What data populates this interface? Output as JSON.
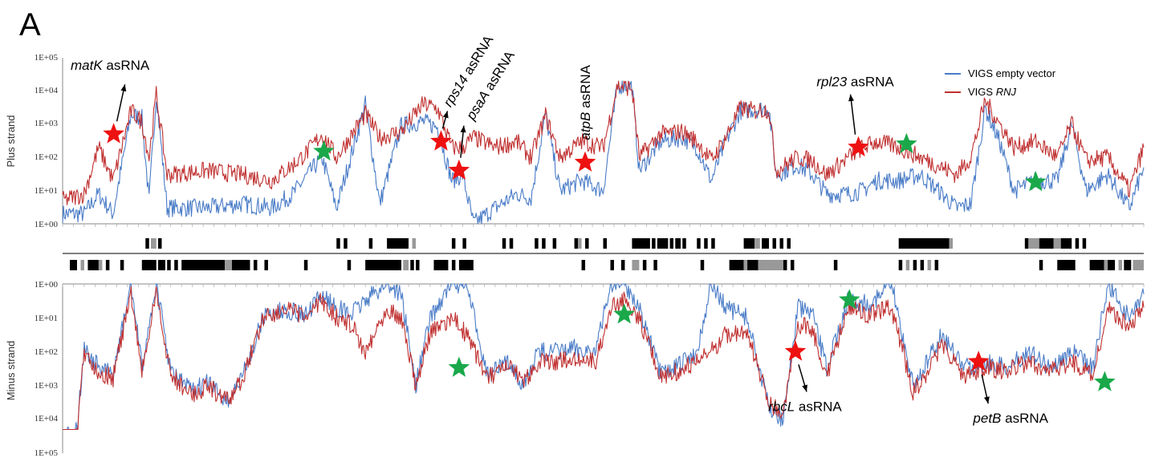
{
  "panel_letter": "A",
  "chart_data": {
    "type": "line",
    "x_bins": 300,
    "legend": {
      "placement": "top-right",
      "items": [
        {
          "name": "VIGS empty vector",
          "color": "#4a7cc7"
        },
        {
          "name_html": "VIGS <i>RNJ</i>",
          "name": "VIGS RNJ",
          "color": "#c03030"
        }
      ]
    },
    "plus_strand": {
      "ylabel": "Plus strand",
      "scale": "log",
      "ylim": [
        1,
        100000
      ],
      "tick_labels": [
        "1E+00",
        "1E+01",
        "1E+02",
        "1E+03",
        "1E+04",
        "1E+05"
      ],
      "control_profile": [
        {
          "x": 0,
          "v": 2
        },
        {
          "x": 6,
          "v": 2
        },
        {
          "x": 10,
          "v": 8
        },
        {
          "x": 14,
          "v": 2
        },
        {
          "x": 19,
          "v": 2000
        },
        {
          "x": 22,
          "v": 1500
        },
        {
          "x": 24,
          "v": 5
        },
        {
          "x": 26,
          "v": 8000
        },
        {
          "x": 29,
          "v": 3
        },
        {
          "x": 40,
          "v": 3
        },
        {
          "x": 50,
          "v": 4
        },
        {
          "x": 58,
          "v": 3
        },
        {
          "x": 64,
          "v": 8
        },
        {
          "x": 68,
          "v": 30
        },
        {
          "x": 72,
          "v": 100
        },
        {
          "x": 76,
          "v": 3
        },
        {
          "x": 84,
          "v": 4000
        },
        {
          "x": 88,
          "v": 4
        },
        {
          "x": 94,
          "v": 900
        },
        {
          "x": 100,
          "v": 1200
        },
        {
          "x": 104,
          "v": 800
        },
        {
          "x": 108,
          "v": 20
        },
        {
          "x": 111,
          "v": 30
        },
        {
          "x": 114,
          "v": 1
        },
        {
          "x": 120,
          "v": 3
        },
        {
          "x": 126,
          "v": 8
        },
        {
          "x": 130,
          "v": 6
        },
        {
          "x": 134,
          "v": 2000
        },
        {
          "x": 138,
          "v": 10
        },
        {
          "x": 144,
          "v": 20
        },
        {
          "x": 150,
          "v": 10
        },
        {
          "x": 154,
          "v": 15000
        },
        {
          "x": 158,
          "v": 14000
        },
        {
          "x": 160,
          "v": 40
        },
        {
          "x": 166,
          "v": 300
        },
        {
          "x": 172,
          "v": 400
        },
        {
          "x": 176,
          "v": 200
        },
        {
          "x": 180,
          "v": 20
        },
        {
          "x": 184,
          "v": 300
        },
        {
          "x": 188,
          "v": 2500
        },
        {
          "x": 192,
          "v": 2800
        },
        {
          "x": 196,
          "v": 3000
        },
        {
          "x": 198,
          "v": 30
        },
        {
          "x": 204,
          "v": 60
        },
        {
          "x": 208,
          "v": 30
        },
        {
          "x": 212,
          "v": 8
        },
        {
          "x": 218,
          "v": 8
        },
        {
          "x": 222,
          "v": 10
        },
        {
          "x": 226,
          "v": 20
        },
        {
          "x": 232,
          "v": 20
        },
        {
          "x": 238,
          "v": 30
        },
        {
          "x": 244,
          "v": 8
        },
        {
          "x": 248,
          "v": 3
        },
        {
          "x": 252,
          "v": 4
        },
        {
          "x": 256,
          "v": 3000
        },
        {
          "x": 260,
          "v": 300
        },
        {
          "x": 264,
          "v": 10
        },
        {
          "x": 270,
          "v": 20
        },
        {
          "x": 276,
          "v": 20
        },
        {
          "x": 280,
          "v": 1000
        },
        {
          "x": 284,
          "v": 10
        },
        {
          "x": 290,
          "v": 30
        },
        {
          "x": 296,
          "v": 3
        },
        {
          "x": 300,
          "v": 50
        }
      ],
      "rnj_profile": [
        {
          "x": 0,
          "v": 5
        },
        {
          "x": 6,
          "v": 8
        },
        {
          "x": 10,
          "v": 200
        },
        {
          "x": 14,
          "v": 20
        },
        {
          "x": 19,
          "v": 2500
        },
        {
          "x": 22,
          "v": 1200
        },
        {
          "x": 24,
          "v": 100
        },
        {
          "x": 26,
          "v": 8000
        },
        {
          "x": 29,
          "v": 30
        },
        {
          "x": 40,
          "v": 40
        },
        {
          "x": 50,
          "v": 30
        },
        {
          "x": 58,
          "v": 20
        },
        {
          "x": 64,
          "v": 60
        },
        {
          "x": 68,
          "v": 150
        },
        {
          "x": 72,
          "v": 500
        },
        {
          "x": 76,
          "v": 100
        },
        {
          "x": 84,
          "v": 2000
        },
        {
          "x": 88,
          "v": 400
        },
        {
          "x": 94,
          "v": 600
        },
        {
          "x": 100,
          "v": 4000
        },
        {
          "x": 104,
          "v": 3000
        },
        {
          "x": 108,
          "v": 200
        },
        {
          "x": 111,
          "v": 200
        },
        {
          "x": 114,
          "v": 400
        },
        {
          "x": 120,
          "v": 200
        },
        {
          "x": 126,
          "v": 300
        },
        {
          "x": 130,
          "v": 100
        },
        {
          "x": 134,
          "v": 1800
        },
        {
          "x": 138,
          "v": 100
        },
        {
          "x": 144,
          "v": 300
        },
        {
          "x": 150,
          "v": 200
        },
        {
          "x": 154,
          "v": 15000
        },
        {
          "x": 158,
          "v": 12000
        },
        {
          "x": 160,
          "v": 100
        },
        {
          "x": 166,
          "v": 500
        },
        {
          "x": 172,
          "v": 600
        },
        {
          "x": 176,
          "v": 300
        },
        {
          "x": 180,
          "v": 80
        },
        {
          "x": 184,
          "v": 400
        },
        {
          "x": 188,
          "v": 3000
        },
        {
          "x": 192,
          "v": 2500
        },
        {
          "x": 196,
          "v": 2800
        },
        {
          "x": 198,
          "v": 40
        },
        {
          "x": 204,
          "v": 100
        },
        {
          "x": 208,
          "v": 80
        },
        {
          "x": 212,
          "v": 30
        },
        {
          "x": 218,
          "v": 100
        },
        {
          "x": 222,
          "v": 200
        },
        {
          "x": 226,
          "v": 300
        },
        {
          "x": 232,
          "v": 200
        },
        {
          "x": 238,
          "v": 100
        },
        {
          "x": 244,
          "v": 50
        },
        {
          "x": 248,
          "v": 30
        },
        {
          "x": 252,
          "v": 100
        },
        {
          "x": 256,
          "v": 5000
        },
        {
          "x": 260,
          "v": 1000
        },
        {
          "x": 264,
          "v": 200
        },
        {
          "x": 270,
          "v": 300
        },
        {
          "x": 276,
          "v": 100
        },
        {
          "x": 280,
          "v": 1000
        },
        {
          "x": 284,
          "v": 80
        },
        {
          "x": 290,
          "v": 100
        },
        {
          "x": 296,
          "v": 10
        },
        {
          "x": 300,
          "v": 200
        }
      ],
      "annotations": [
        {
          "star": "red",
          "x": 17,
          "y": 500,
          "label_html": "<i>matK</i> asRNA",
          "label": "matK asRNA"
        },
        {
          "star": "red",
          "x": 126,
          "y": 300,
          "label_html": "<i>rps14</i> asRNA",
          "label": "rps14 asRNA",
          "rotate": -58
        },
        {
          "star": "red",
          "x": 132,
          "y": 40,
          "label_html": "<i>psaA</i>  asRNA",
          "label": "psaA  asRNA",
          "rotate": -58
        },
        {
          "star": "red",
          "x": 174,
          "y": 70,
          "label_html": "<i>atpB</i>  asRNA",
          "label": "atpB  asRNA",
          "rotate": -90
        },
        {
          "star": "red",
          "x": 265,
          "y": 200,
          "label_html": "<i>rpl23</i> asRNA",
          "label": "rpl23 asRNA"
        },
        {
          "star": "green",
          "x": 87,
          "y": 150
        },
        {
          "star": "green",
          "x": 281,
          "y": 250
        },
        {
          "star": "green",
          "x": 324,
          "y": 18
        }
      ]
    },
    "minus_strand": {
      "ylabel": "Minus strand",
      "scale": "log",
      "inverted": true,
      "ylim": [
        1,
        100000
      ],
      "tick_labels": [
        "1E+00",
        "1E+01",
        "1E+02",
        "1E+03",
        "1E+04",
        "1E+05"
      ],
      "control_profile": [
        {
          "x": 0,
          "v": 30000
        },
        {
          "x": 4,
          "v": 20000
        },
        {
          "x": 6,
          "v": 80
        },
        {
          "x": 10,
          "v": 300
        },
        {
          "x": 14,
          "v": 500
        },
        {
          "x": 19,
          "v": 1
        },
        {
          "x": 22,
          "v": 300
        },
        {
          "x": 26,
          "v": 1
        },
        {
          "x": 30,
          "v": 400
        },
        {
          "x": 36,
          "v": 1500
        },
        {
          "x": 40,
          "v": 800
        },
        {
          "x": 46,
          "v": 3000
        },
        {
          "x": 50,
          "v": 500
        },
        {
          "x": 56,
          "v": 8
        },
        {
          "x": 62,
          "v": 6
        },
        {
          "x": 68,
          "v": 8
        },
        {
          "x": 72,
          "v": 2
        },
        {
          "x": 76,
          "v": 5
        },
        {
          "x": 80,
          "v": 8
        },
        {
          "x": 84,
          "v": 3
        },
        {
          "x": 90,
          "v": 1
        },
        {
          "x": 94,
          "v": 2
        },
        {
          "x": 98,
          "v": 1000
        },
        {
          "x": 102,
          "v": 10
        },
        {
          "x": 108,
          "v": 1
        },
        {
          "x": 112,
          "v": 1
        },
        {
          "x": 118,
          "v": 500
        },
        {
          "x": 124,
          "v": 200
        },
        {
          "x": 128,
          "v": 1000
        },
        {
          "x": 132,
          "v": 100
        },
        {
          "x": 138,
          "v": 100
        },
        {
          "x": 142,
          "v": 80
        },
        {
          "x": 148,
          "v": 100
        },
        {
          "x": 152,
          "v": 1
        },
        {
          "x": 156,
          "v": 1
        },
        {
          "x": 160,
          "v": 5
        },
        {
          "x": 166,
          "v": 500
        },
        {
          "x": 170,
          "v": 300
        },
        {
          "x": 176,
          "v": 100
        },
        {
          "x": 180,
          "v": 1
        },
        {
          "x": 184,
          "v": 5
        },
        {
          "x": 190,
          "v": 10
        },
        {
          "x": 196,
          "v": 5000
        },
        {
          "x": 200,
          "v": 10000
        },
        {
          "x": 204,
          "v": 5
        },
        {
          "x": 208,
          "v": 8
        },
        {
          "x": 212,
          "v": 300
        },
        {
          "x": 218,
          "v": 3
        },
        {
          "x": 224,
          "v": 4
        },
        {
          "x": 230,
          "v": 1
        },
        {
          "x": 236,
          "v": 1000
        },
        {
          "x": 240,
          "v": 200
        },
        {
          "x": 244,
          "v": 30
        },
        {
          "x": 250,
          "v": 300
        },
        {
          "x": 256,
          "v": 200
        },
        {
          "x": 262,
          "v": 300
        },
        {
          "x": 268,
          "v": 100
        },
        {
          "x": 274,
          "v": 300
        },
        {
          "x": 280,
          "v": 100
        },
        {
          "x": 286,
          "v": 300
        },
        {
          "x": 290,
          "v": 1
        },
        {
          "x": 296,
          "v": 10
        },
        {
          "x": 300,
          "v": 2
        }
      ],
      "rnj_profile": [
        {
          "x": 0,
          "v": 60000
        },
        {
          "x": 4,
          "v": 30000
        },
        {
          "x": 6,
          "v": 100
        },
        {
          "x": 10,
          "v": 400
        },
        {
          "x": 14,
          "v": 600
        },
        {
          "x": 19,
          "v": 2
        },
        {
          "x": 22,
          "v": 400
        },
        {
          "x": 26,
          "v": 2
        },
        {
          "x": 30,
          "v": 500
        },
        {
          "x": 36,
          "v": 2000
        },
        {
          "x": 40,
          "v": 1000
        },
        {
          "x": 46,
          "v": 3000
        },
        {
          "x": 50,
          "v": 600
        },
        {
          "x": 56,
          "v": 8
        },
        {
          "x": 62,
          "v": 6
        },
        {
          "x": 68,
          "v": 10
        },
        {
          "x": 72,
          "v": 3
        },
        {
          "x": 76,
          "v": 10
        },
        {
          "x": 80,
          "v": 15
        },
        {
          "x": 84,
          "v": 100
        },
        {
          "x": 90,
          "v": 5
        },
        {
          "x": 94,
          "v": 10
        },
        {
          "x": 98,
          "v": 1000
        },
        {
          "x": 102,
          "v": 30
        },
        {
          "x": 108,
          "v": 10
        },
        {
          "x": 112,
          "v": 30
        },
        {
          "x": 118,
          "v": 600
        },
        {
          "x": 124,
          "v": 300
        },
        {
          "x": 128,
          "v": 800
        },
        {
          "x": 132,
          "v": 200
        },
        {
          "x": 138,
          "v": 200
        },
        {
          "x": 142,
          "v": 150
        },
        {
          "x": 148,
          "v": 200
        },
        {
          "x": 152,
          "v": 5
        },
        {
          "x": 156,
          "v": 3
        },
        {
          "x": 160,
          "v": 10
        },
        {
          "x": 166,
          "v": 600
        },
        {
          "x": 170,
          "v": 400
        },
        {
          "x": 176,
          "v": 200
        },
        {
          "x": 180,
          "v": 100
        },
        {
          "x": 184,
          "v": 30
        },
        {
          "x": 190,
          "v": 30
        },
        {
          "x": 196,
          "v": 3000
        },
        {
          "x": 200,
          "v": 8000
        },
        {
          "x": 204,
          "v": 15
        },
        {
          "x": 208,
          "v": 20
        },
        {
          "x": 212,
          "v": 500
        },
        {
          "x": 218,
          "v": 5
        },
        {
          "x": 224,
          "v": 8
        },
        {
          "x": 230,
          "v": 5
        },
        {
          "x": 236,
          "v": 1500
        },
        {
          "x": 240,
          "v": 400
        },
        {
          "x": 244,
          "v": 60
        },
        {
          "x": 250,
          "v": 500
        },
        {
          "x": 256,
          "v": 300
        },
        {
          "x": 262,
          "v": 400
        },
        {
          "x": 268,
          "v": 200
        },
        {
          "x": 274,
          "v": 400
        },
        {
          "x": 280,
          "v": 200
        },
        {
          "x": 286,
          "v": 500
        },
        {
          "x": 290,
          "v": 5
        },
        {
          "x": 296,
          "v": 20
        },
        {
          "x": 300,
          "v": 5
        }
      ],
      "annotations": [
        {
          "star": "red",
          "x": 244,
          "y": 100,
          "label_html": "<i>rbcL</i> asRNA",
          "label": "rbcL asRNA"
        },
        {
          "star": "red",
          "x": 305,
          "y": 200,
          "label_html": "<i>petB</i> asRNA",
          "label": "petB asRNA"
        },
        {
          "star": "green",
          "x": 132,
          "y": 300
        },
        {
          "star": "green",
          "x": 187,
          "y": 8
        },
        {
          "star": "green",
          "x": 262,
          "y": 3
        },
        {
          "star": "green",
          "x": 347,
          "y": 800
        }
      ]
    }
  }
}
